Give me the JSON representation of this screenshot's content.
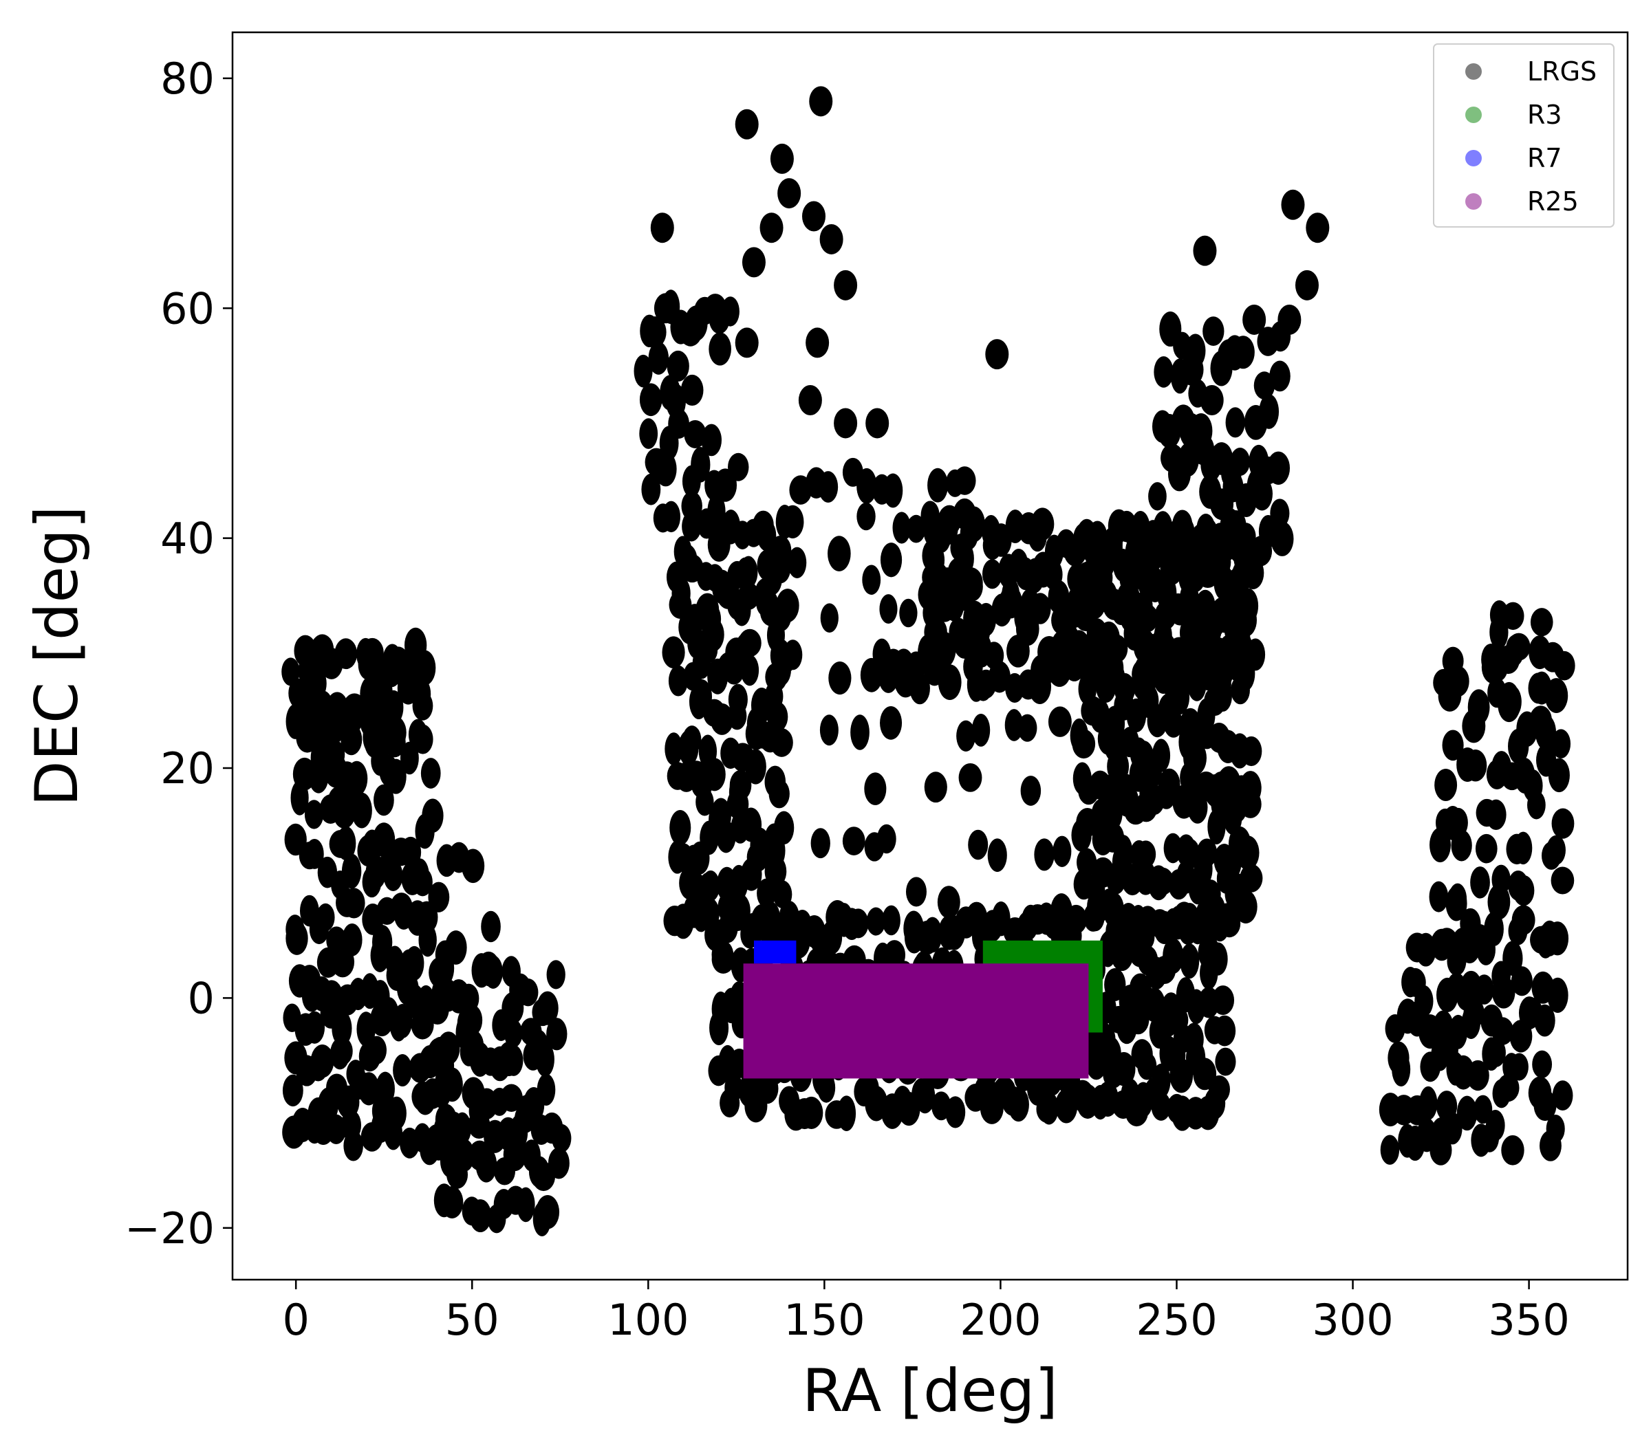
{
  "chart_data": {
    "type": "scatter",
    "xlabel": "RA [deg]",
    "ylabel": "DEC [deg]",
    "xlim": [
      -18,
      378
    ],
    "ylim": [
      -24.5,
      84
    ],
    "x_ticks": [
      0,
      50,
      100,
      150,
      200,
      250,
      300,
      350
    ],
    "y_ticks": [
      -20,
      0,
      20,
      40,
      60,
      80
    ],
    "x_tick_labels": [
      "0",
      "50",
      "100",
      "150",
      "200",
      "250",
      "300",
      "350"
    ],
    "y_tick_labels": [
      "−20",
      "0",
      "20",
      "40",
      "60",
      "80"
    ],
    "grid": false,
    "legend_position": "top-right",
    "series": [
      {
        "name": "LRGS",
        "color": "#000000",
        "legend_color": "#808080",
        "mark": "footprint-blobs",
        "regions": [
          {
            "ra": [
              0,
              75
            ],
            "dec": [
              -19,
              33
            ]
          },
          {
            "ra": [
              95,
              290
            ],
            "dec": [
              -9,
              79
            ]
          },
          {
            "ra": [
              308,
              360
            ],
            "dec": [
              -14,
              33
            ]
          }
        ]
      },
      {
        "name": "R3",
        "color": "#008000",
        "legend_color": "#7fbf7f",
        "mark": "filled-region",
        "regions": [
          {
            "ra": [
              195,
              229
            ],
            "dec": [
              -3,
              5
            ]
          }
        ]
      },
      {
        "name": "R7",
        "color": "#0000ff",
        "legend_color": "#7f7fff",
        "mark": "filled-region",
        "regions": [
          {
            "ra": [
              130,
              142
            ],
            "dec": [
              3,
              5
            ]
          }
        ]
      },
      {
        "name": "R25",
        "color": "#800080",
        "legend_color": "#bf7fbf",
        "mark": "filled-region",
        "regions": [
          {
            "ra": [
              127,
              225
            ],
            "dec": [
              -7,
              3
            ]
          }
        ]
      }
    ]
  }
}
